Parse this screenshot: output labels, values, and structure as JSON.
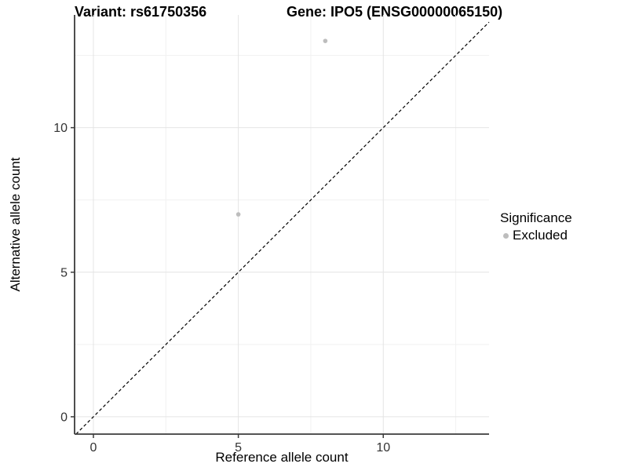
{
  "chart_data": {
    "type": "scatter",
    "titles": {
      "variant": "Variant: rs61750356",
      "gene": "Gene: IPO5 (ENSG00000065150)"
    },
    "xlabel": "Reference allele count",
    "ylabel": "Alternative allele count",
    "xlim": [
      -0.65,
      13.65
    ],
    "ylim": [
      -0.6,
      13.9
    ],
    "x_major_ticks": [
      0,
      5,
      10
    ],
    "y_major_ticks": [
      0,
      5,
      10
    ],
    "x_minor_gridlines": [
      2.5,
      7.5,
      12.5
    ],
    "y_minor_gridlines": [
      2.5,
      7.5,
      12.5
    ],
    "grid": "major+minor",
    "legend_position": "right",
    "legend": {
      "title": "Significance",
      "entries": [
        {
          "label": "Excluded",
          "color": "#BDBDBD"
        }
      ]
    },
    "series": [
      {
        "name": "Excluded",
        "color": "#BDBDBD",
        "marker": "circle",
        "points": [
          [
            5,
            7
          ],
          [
            8,
            13
          ]
        ]
      }
    ],
    "reference_line": {
      "slope": 1,
      "intercept": 0,
      "style": "dashed",
      "color": "#000000"
    }
  },
  "colors": {
    "background": "#FFFFFF",
    "major_grid": "#E4E4E4",
    "minor_grid": "#F1F1F1",
    "axis_line": "#3B3B3B",
    "tick_label": "#333333"
  }
}
